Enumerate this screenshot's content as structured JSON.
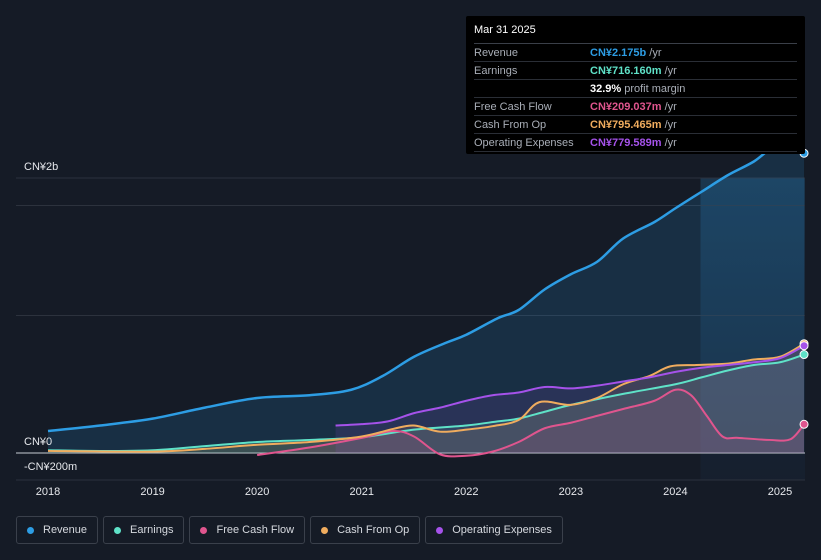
{
  "tooltip": {
    "date": "Mar 31 2025",
    "rows": [
      {
        "label": "Revenue",
        "value": "CN¥2.175b",
        "unit": "/yr",
        "color": "#2d9de4"
      },
      {
        "label": "Earnings",
        "value": "CN¥716.160m",
        "unit": "/yr",
        "color": "#5fe2c8"
      },
      {
        "label": "",
        "value": "32.9%",
        "unit": "profit margin",
        "color": "#ffffff"
      },
      {
        "label": "Free Cash Flow",
        "value": "CN¥209.037m",
        "unit": "/yr",
        "color": "#e0558e"
      },
      {
        "label": "Cash From Op",
        "value": "CN¥795.465m",
        "unit": "/yr",
        "color": "#f0ac5e"
      },
      {
        "label": "Operating Expenses",
        "value": "CN¥779.589m",
        "unit": "/yr",
        "color": "#a552ea"
      }
    ]
  },
  "chart_data": {
    "type": "line",
    "y_axis_labels": [
      "CN¥2b",
      "CN¥0",
      "-CN¥200m"
    ],
    "y_axis_values": [
      2000,
      0,
      -200
    ],
    "ylim": [
      -220,
      2200
    ],
    "x_ticks": [
      "2018",
      "2019",
      "2020",
      "2021",
      "2022",
      "2023",
      "2024",
      "2025"
    ],
    "x_tick_values": [
      2018,
      2019,
      2020,
      2021,
      2022,
      2023,
      2024,
      2025
    ],
    "xlim": [
      2017.7,
      2025.23
    ],
    "forecast_region_start": 2024.24,
    "grid": true,
    "series": [
      {
        "name": "Revenue",
        "color": "#2d9de4",
        "fill": true,
        "points": [
          [
            2018,
            160
          ],
          [
            2018.5,
            200
          ],
          [
            2019,
            250
          ],
          [
            2019.5,
            330
          ],
          [
            2020,
            400
          ],
          [
            2020.5,
            420
          ],
          [
            2020.9,
            460
          ],
          [
            2021.2,
            560
          ],
          [
            2021.5,
            700
          ],
          [
            2021.8,
            800
          ],
          [
            2022,
            860
          ],
          [
            2022.3,
            980
          ],
          [
            2022.5,
            1040
          ],
          [
            2022.75,
            1190
          ],
          [
            2023,
            1300
          ],
          [
            2023.25,
            1390
          ],
          [
            2023.5,
            1560
          ],
          [
            2023.8,
            1680
          ],
          [
            2024,
            1780
          ],
          [
            2024.25,
            1900
          ],
          [
            2024.5,
            2020
          ],
          [
            2024.75,
            2120
          ],
          [
            2025,
            2250
          ],
          [
            2025.23,
            2180
          ]
        ]
      },
      {
        "name": "Earnings",
        "color": "#5fe2c8",
        "fill": true,
        "points": [
          [
            2018,
            20
          ],
          [
            2018.5,
            15
          ],
          [
            2019,
            20
          ],
          [
            2019.5,
            50
          ],
          [
            2020,
            80
          ],
          [
            2020.5,
            95
          ],
          [
            2021,
            115
          ],
          [
            2021.5,
            170
          ],
          [
            2022,
            200
          ],
          [
            2022.3,
            230
          ],
          [
            2022.5,
            250
          ],
          [
            2022.75,
            300
          ],
          [
            2023,
            350
          ],
          [
            2023.5,
            430
          ],
          [
            2024,
            500
          ],
          [
            2024.25,
            550
          ],
          [
            2024.5,
            600
          ],
          [
            2024.75,
            640
          ],
          [
            2025,
            660
          ],
          [
            2025.23,
            716
          ]
        ]
      },
      {
        "name": "Free Cash Flow",
        "color": "#e0558e",
        "fill": true,
        "points": [
          [
            2020,
            -15
          ],
          [
            2020.5,
            40
          ],
          [
            2021,
            110
          ],
          [
            2021.3,
            160
          ],
          [
            2021.5,
            120
          ],
          [
            2021.75,
            -10
          ],
          [
            2022,
            -20
          ],
          [
            2022.25,
            10
          ],
          [
            2022.5,
            80
          ],
          [
            2022.75,
            180
          ],
          [
            2023,
            220
          ],
          [
            2023.25,
            270
          ],
          [
            2023.5,
            320
          ],
          [
            2023.8,
            380
          ],
          [
            2024,
            460
          ],
          [
            2024.15,
            420
          ],
          [
            2024.3,
            270
          ],
          [
            2024.45,
            120
          ],
          [
            2024.6,
            110
          ],
          [
            2024.9,
            95
          ],
          [
            2025.1,
            100
          ],
          [
            2025.23,
            209
          ]
        ]
      },
      {
        "name": "Cash From Op",
        "color": "#f0ac5e",
        "fill": true,
        "points": [
          [
            2018,
            15
          ],
          [
            2019,
            10
          ],
          [
            2019.5,
            30
          ],
          [
            2020,
            60
          ],
          [
            2020.5,
            80
          ],
          [
            2021,
            120
          ],
          [
            2021.3,
            175
          ],
          [
            2021.5,
            200
          ],
          [
            2021.75,
            155
          ],
          [
            2022,
            170
          ],
          [
            2022.25,
            195
          ],
          [
            2022.5,
            240
          ],
          [
            2022.7,
            370
          ],
          [
            2023,
            350
          ],
          [
            2023.25,
            400
          ],
          [
            2023.5,
            500
          ],
          [
            2023.75,
            560
          ],
          [
            2023.95,
            630
          ],
          [
            2024.2,
            640
          ],
          [
            2024.5,
            650
          ],
          [
            2024.75,
            680
          ],
          [
            2025,
            700
          ],
          [
            2025.23,
            795
          ]
        ]
      },
      {
        "name": "Operating Expenses",
        "color": "#a552ea",
        "fill": true,
        "points": [
          [
            2020.75,
            200
          ],
          [
            2021,
            210
          ],
          [
            2021.25,
            230
          ],
          [
            2021.5,
            290
          ],
          [
            2021.75,
            330
          ],
          [
            2022,
            380
          ],
          [
            2022.25,
            420
          ],
          [
            2022.5,
            440
          ],
          [
            2022.75,
            480
          ],
          [
            2023,
            470
          ],
          [
            2023.25,
            490
          ],
          [
            2023.5,
            520
          ],
          [
            2023.75,
            550
          ],
          [
            2024,
            590
          ],
          [
            2024.25,
            620
          ],
          [
            2024.5,
            640
          ],
          [
            2024.75,
            660
          ],
          [
            2025,
            690
          ],
          [
            2025.23,
            780
          ]
        ]
      }
    ]
  },
  "legend": [
    {
      "label": "Revenue",
      "color": "#2d9de4"
    },
    {
      "label": "Earnings",
      "color": "#5fe2c8"
    },
    {
      "label": "Free Cash Flow",
      "color": "#e0558e"
    },
    {
      "label": "Cash From Op",
      "color": "#f0ac5e"
    },
    {
      "label": "Operating Expenses",
      "color": "#a552ea"
    }
  ]
}
